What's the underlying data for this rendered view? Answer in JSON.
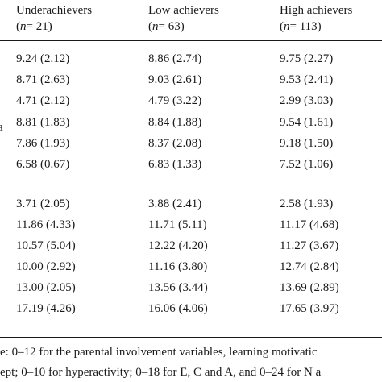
{
  "table": {
    "columns": [
      {
        "name": "Underachievers",
        "n_label": "n",
        "n_value": "= 21"
      },
      {
        "name": "Low achievers",
        "n_label": "n",
        "n_value": "= 63"
      },
      {
        "name": "High achievers",
        "n_label": "n",
        "n_value": "= 113"
      }
    ],
    "left_fragment": "a",
    "group1": [
      [
        "9.24 (2.12)",
        "8.86 (2.74)",
        "9.75 (2.27)"
      ],
      [
        "8.71 (2.63)",
        "9.03 (2.61)",
        "9.53 (2.41)"
      ],
      [
        "4.71 (2.12)",
        "4.79 (3.22)",
        "2.99 (3.03)"
      ],
      [
        "8.81 (1.83)",
        "8.84 (1.88)",
        "9.54 (1.61)"
      ],
      [
        "7.86 (1.93)",
        "8.37 (2.08)",
        "9.18 (1.50)"
      ],
      [
        "6.58 (0.67)",
        "6.83 (1.33)",
        "7.52 (1.06)"
      ]
    ],
    "group2": [
      [
        "3.71 (2.05)",
        "3.88 (2.41)",
        "2.58 (1.93)"
      ],
      [
        "11.86 (4.33)",
        "11.71 (5.11)",
        "11.17 (4.68)"
      ],
      [
        "10.57 (5.04)",
        "12.22 (4.20)",
        "11.27 (3.67)"
      ],
      [
        "10.00 (2.92)",
        "11.16 (3.80)",
        "12.74 (2.84)"
      ],
      [
        "13.00 (2.05)",
        "13.56 (3.44)",
        "13.69 (2.89)"
      ],
      [
        "17.19 (4.26)",
        "16.06 (4.06)",
        "17.65 (3.97)"
      ]
    ]
  },
  "footnote": {
    "line1": "e: 0–12 for the parental involvement variables, learning motivatic",
    "line2": "ept; 0–10 for hyperactivity; 0–18 for E, C and A, and 0–24 for N a"
  }
}
